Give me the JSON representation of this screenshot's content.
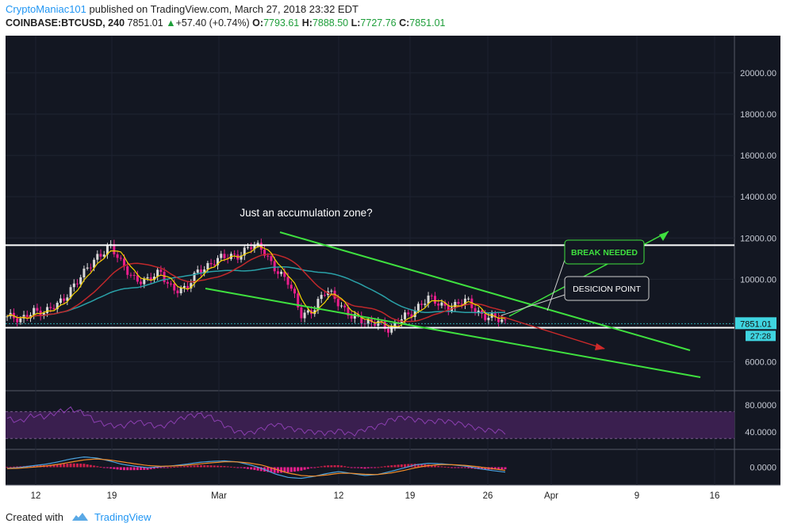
{
  "header": {
    "author": "CryptoManiac101",
    "published_text": "published on TradingView.com, March 27, 2018 23:32 EDT",
    "symbol": "COINBASE:BTCUSD, 240",
    "last": "7851.01",
    "change_arrow": "▲",
    "change": "+57.40 (+0.74%)",
    "o_label": "O:",
    "o_value": "7793.61",
    "h_label": "H:",
    "h_value": "7888.50",
    "l_label": "L:",
    "l_value": "7727.76",
    "c_label": "C:",
    "c_value": "7851.01"
  },
  "footer": {
    "created_with": "Created with",
    "brand": "TradingView"
  },
  "chart_data": [
    {
      "type": "candlestick",
      "title": "",
      "x_ticks": [
        "12",
        "19",
        "Mar",
        "12",
        "19",
        "26",
        "Apr",
        "9",
        "16"
      ],
      "y_ticks": [
        "20000.00",
        "18000.00",
        "16000.00",
        "14000.00",
        "12000.00",
        "10000.00",
        "6000.00"
      ],
      "ylim": [
        4600,
        21800
      ],
      "last_price_label": "7851.01",
      "countdown_label": "27:28",
      "closes_approx": [
        8200,
        7900,
        8600,
        8300,
        8800,
        9600,
        10200,
        11100,
        11700,
        10600,
        10100,
        9900,
        10300,
        9600,
        9400,
        10500,
        10800,
        11000,
        11200,
        11600,
        11400,
        10600,
        9800,
        8300,
        8600,
        9400,
        8900,
        8200,
        7800,
        8100,
        7400,
        8200,
        8600,
        9000,
        8800,
        8700,
        8900,
        8400,
        8100,
        7850
      ],
      "horizontal_levels": [
        11650,
        7650
      ],
      "annotations": [
        {
          "text": "Just an accumulation zone?"
        },
        {
          "text": "BREAK NEEDED"
        },
        {
          "text": "DESICION POINT"
        }
      ],
      "colors": {
        "background": "#131722",
        "up": "#d9d9d9",
        "down": "#e91e8c",
        "trendline": "#3fe03f",
        "level": "#ffffff",
        "ma_fast": "#f5d300",
        "ma_slow": "#c0282b",
        "ma_long": "#2aa1a8",
        "arrow": "#d12a2a"
      }
    },
    {
      "type": "line",
      "title": "",
      "y_ticks": [
        "80.0000",
        "40.0000"
      ],
      "ylim": [
        15,
        100
      ],
      "band": [
        70,
        30
      ],
      "values_approx": [
        60,
        55,
        65,
        62,
        70,
        74,
        68,
        55,
        50,
        48,
        56,
        52,
        47,
        55,
        63,
        66,
        62,
        50,
        40,
        38,
        45,
        52,
        46,
        42,
        40,
        38,
        42,
        36,
        44,
        48,
        58,
        62,
        58,
        55,
        57,
        54,
        50,
        44,
        42,
        40
      ],
      "colors": {
        "line": "#8b3fb0",
        "band": "#3a1f4f"
      }
    },
    {
      "type": "line",
      "title": "",
      "y_ticks": [
        "0.0000"
      ],
      "ylim": [
        -700,
        700
      ],
      "macd_approx": [
        -50,
        -10,
        60,
        120,
        220,
        340,
        420,
        380,
        260,
        120,
        40,
        -20,
        20,
        60,
        120,
        200,
        240,
        260,
        220,
        100,
        -60,
        -280,
        -420,
        -460,
        -380,
        -260,
        -180,
        -260,
        -340,
        -300,
        -180,
        -40,
        100,
        160,
        140,
        90,
        40,
        -60,
        -140,
        -200
      ],
      "signal_approx": [
        -60,
        -40,
        0,
        50,
        120,
        210,
        300,
        340,
        300,
        220,
        140,
        70,
        40,
        50,
        80,
        130,
        180,
        220,
        220,
        170,
        80,
        -80,
        -240,
        -340,
        -370,
        -320,
        -250,
        -250,
        -290,
        -300,
        -240,
        -140,
        -20,
        70,
        110,
        100,
        70,
        10,
        -60,
        -130
      ],
      "colors": {
        "macd": "#4aa3df",
        "signal": "#f28c28",
        "hist_pos": "#cc1f4a",
        "hist_neg": "#e91e8c"
      }
    }
  ]
}
